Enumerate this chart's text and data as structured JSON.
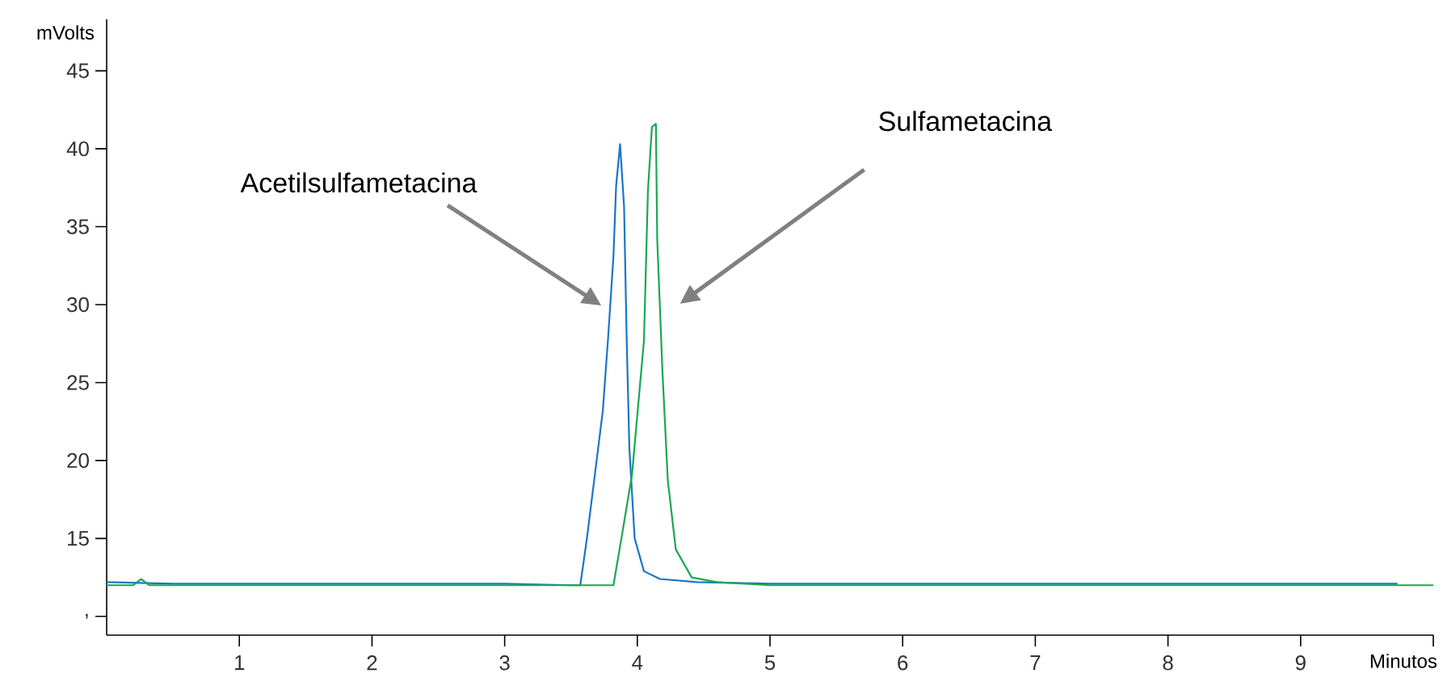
{
  "chart_data": {
    "type": "line",
    "xlabel": "Minutos",
    "ylabel": "mVolts",
    "xlim": [
      0,
      10
    ],
    "ylim": [
      8.8,
      48.3
    ],
    "xticks": [
      1,
      2,
      3,
      4,
      5,
      6,
      7,
      8,
      9,
      {
        "value": 10,
        "label": null
      }
    ],
    "yticks": [
      {
        "value": 10,
        "label": ","
      },
      15,
      20,
      25,
      30,
      35,
      40,
      45
    ],
    "grid": false,
    "marker": "none",
    "line_style": "solid",
    "series": [
      {
        "color": "#1a75c8",
        "x": [
          0.0,
          0.5,
          1,
          2,
          3,
          3.5,
          3.57,
          3.62,
          3.68,
          3.74,
          3.78,
          3.82,
          3.84,
          3.87,
          3.9,
          3.92,
          3.94,
          3.98,
          4.05,
          4.17,
          4.45,
          5,
          6,
          7,
          8,
          9,
          9.73
        ],
        "values": [
          12.2,
          12.1,
          12.1,
          12.1,
          12.1,
          12.0,
          12.0,
          15.0,
          19.1,
          23.2,
          27.9,
          33.1,
          37.6,
          40.3,
          36.3,
          27.7,
          20.8,
          15.0,
          12.9,
          12.4,
          12.2,
          12.1,
          12.1,
          12.1,
          12.1,
          12.1,
          12.1
        ]
      },
      {
        "color": "#1aa84f",
        "x": [
          0,
          0.2,
          0.26,
          0.32,
          1,
          2,
          3,
          3.82,
          3.88,
          3.96,
          4.05,
          4.08,
          4.11,
          4.14,
          4.15,
          4.19,
          4.23,
          4.29,
          4.41,
          4.6,
          5,
          6,
          7,
          8,
          9,
          10
        ],
        "values": [
          12.0,
          12.0,
          12.4,
          12.0,
          12.0,
          12.0,
          12.0,
          12.0,
          15.0,
          19.1,
          27.7,
          37.3,
          41.4,
          41.6,
          34.2,
          25.6,
          18.7,
          14.3,
          12.5,
          12.2,
          12.0,
          12.0,
          12.0,
          12.0,
          12.0,
          12.0
        ]
      }
    ],
    "annotations": [
      "Acetilsulfametacina",
      "Sulfametacina"
    ]
  }
}
